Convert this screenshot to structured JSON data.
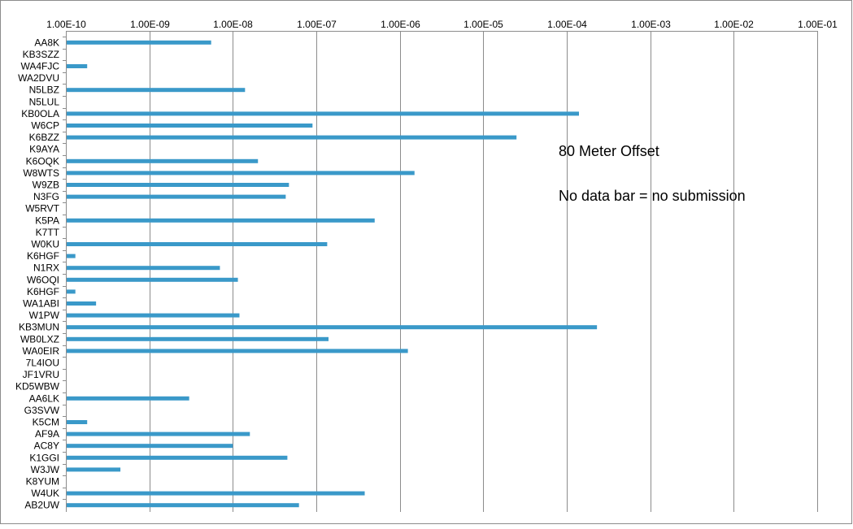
{
  "chart_data": {
    "type": "bar",
    "orientation": "horizontal",
    "x_scale": "log",
    "xlim": [
      1e-10,
      0.1
    ],
    "grid": true,
    "x_tick_values": [
      1e-10,
      1e-09,
      1e-08,
      1e-07,
      1e-06,
      1e-05,
      0.0001,
      0.001,
      0.01,
      0.1
    ],
    "x_tick_labels": [
      "1.00E-10",
      "1.00E-09",
      "1.00E-08",
      "1.00E-07",
      "1.00E-06",
      "1.00E-05",
      "1.00E-04",
      "1.00E-03",
      "1.00E-02",
      "1.00E-01"
    ],
    "annotations": [
      "80 Meter Offset",
      "No data bar = no submission"
    ],
    "bar_color": "#3a99c9",
    "gridline_color": "#8c8c8c",
    "categories": [
      "AA8K",
      "KB3SZZ",
      "WA4FJC",
      "WA2DVU",
      "N5LBZ",
      "N5LUL",
      "KB0OLA",
      "W6CP",
      "K6BZZ",
      "K9AYA",
      "K6OQK",
      "W8WTS",
      "W9ZB",
      "N3FG",
      "W5RVT",
      "K5PA",
      "K7TT",
      "W0KU",
      "K6HGF",
      "N1RX",
      "W6OQI",
      "K6HGF",
      "WA1ABI",
      "W1PW",
      "KB3MUN",
      "WB0LXZ",
      "WA0EIR",
      "7L4IOU",
      "JF1VRU",
      "KD5WBW",
      "AA6LK",
      "G3SVW",
      "K5CM",
      "AF9A",
      "AC8Y",
      "K1GGI",
      "W3JW",
      "K8YUM",
      "W4UK",
      "AB2UW"
    ],
    "values": [
      5.5e-09,
      null,
      1.8e-10,
      null,
      1.4e-08,
      null,
      0.00014,
      9e-08,
      2.5e-05,
      null,
      2e-08,
      1.5e-06,
      4.7e-08,
      4.3e-08,
      null,
      5e-07,
      null,
      1.35e-07,
      1.3e-10,
      7e-09,
      1.15e-08,
      1.3e-10,
      2.3e-10,
      1.2e-08,
      0.00023,
      1.4e-07,
      1.25e-06,
      null,
      null,
      null,
      3e-09,
      null,
      1.8e-10,
      1.6e-08,
      1e-08,
      4.5e-08,
      4.5e-10,
      null,
      3.8e-07,
      6.2e-08
    ]
  }
}
